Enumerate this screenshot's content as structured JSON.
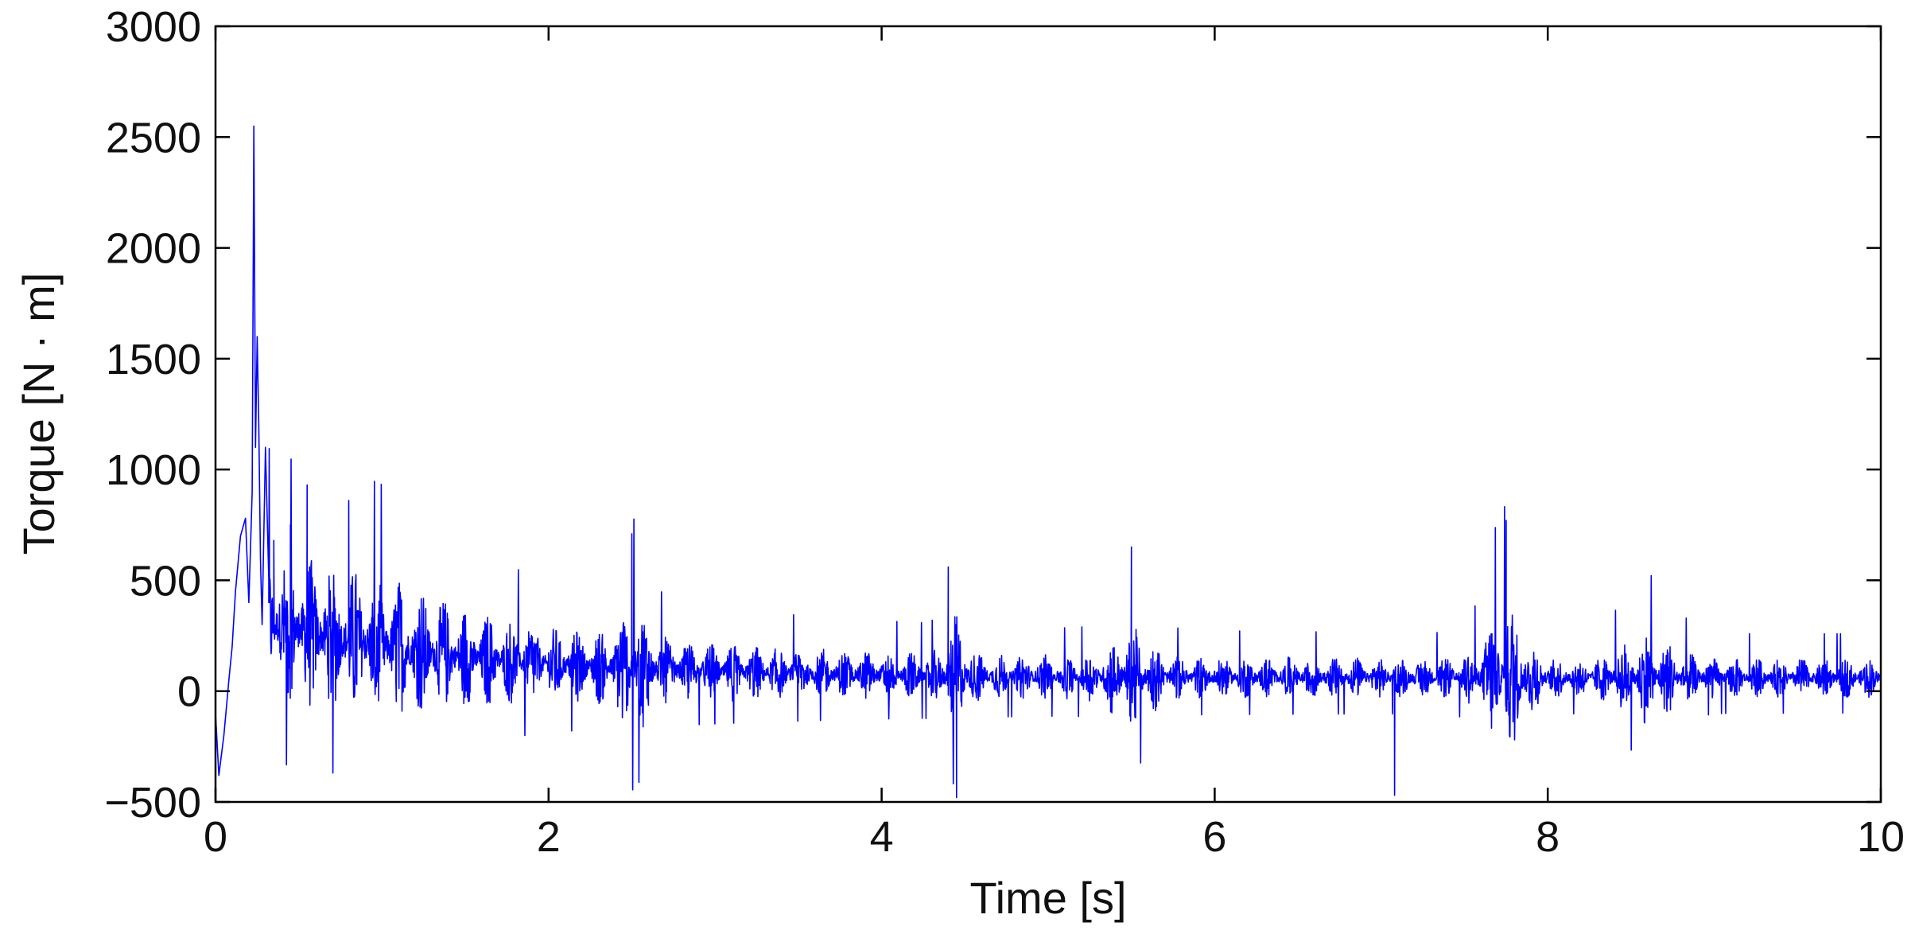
{
  "chart_data": {
    "type": "line",
    "title": "",
    "xlabel": "Time [s]",
    "ylabel": "Torque [N · m]",
    "xlim": [
      0,
      10
    ],
    "ylim": [
      -500,
      3000
    ],
    "xticks": [
      0,
      2,
      4,
      6,
      8,
      10
    ],
    "yticks": [
      -500,
      0,
      500,
      1000,
      1500,
      2000,
      2500,
      3000
    ],
    "xtick_labels": [
      "0",
      "2",
      "4",
      "6",
      "8",
      "10"
    ],
    "ytick_labels": [
      "−500",
      "0",
      "500",
      "1000",
      "1500",
      "2000",
      "2500",
      "3000"
    ],
    "grid": false,
    "legend": "none",
    "series_color": "#0000ff",
    "series": [
      {
        "x": [
          0,
          0.02,
          0.05,
          0.08,
          0.1,
          0.12,
          0.15,
          0.18,
          0.2,
          0.22,
          0.23,
          0.24,
          0.25,
          0.26,
          0.27,
          0.28,
          0.3,
          0.32,
          0.35,
          0.4,
          0.45,
          0.5,
          0.55,
          0.6,
          0.7,
          0.8,
          0.85,
          0.9,
          1.0,
          1.2,
          1.5,
          1.8,
          2.0,
          2.3,
          2.5,
          2.6,
          3.0,
          3.5,
          4.0,
          4.4,
          4.45,
          4.5,
          5.0,
          5.5,
          6.0,
          6.5,
          7.0,
          7.08,
          7.5,
          7.75,
          8.0,
          8.5,
          9.0,
          9.5,
          9.75,
          10.0
        ],
        "y": [
          -100,
          -380,
          -200,
          50,
          200,
          450,
          700,
          780,
          400,
          900,
          2550,
          1100,
          1600,
          1200,
          600,
          300,
          1100,
          500,
          680,
          400,
          750,
          350,
          930,
          300,
          280,
          860,
          300,
          250,
          220,
          200,
          180,
          160,
          150,
          140,
          710,
          120,
          110,
          100,
          100,
          560,
          -480,
          100,
          90,
          650,
          90,
          85,
          80,
          -470,
          80,
          770,
          80,
          75,
          70,
          60,
          60,
          60
        ]
      }
    ]
  }
}
